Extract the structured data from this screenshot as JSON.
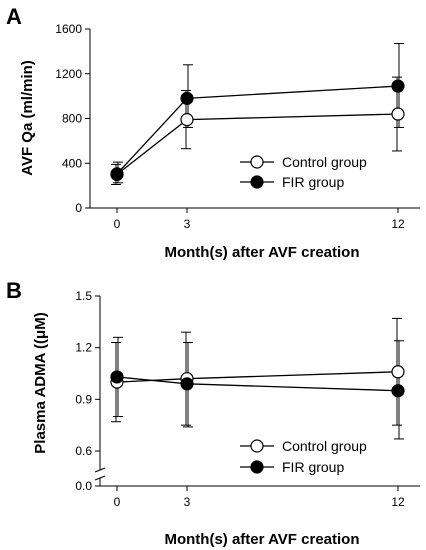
{
  "chart_data": [
    {
      "panel": "A",
      "type": "line",
      "xlabel": "Month(s) after AVF creation",
      "ylabel": "AVF Qa (ml/min)",
      "x": [
        0,
        3,
        12
      ],
      "xticks": [
        "0",
        "3",
        "12"
      ],
      "ylim": [
        0,
        1600
      ],
      "yticks": [
        "0",
        "400",
        "800",
        "1200",
        "1600"
      ],
      "grid": false,
      "legend_position": "bottom-right",
      "series": [
        {
          "name": "Control group",
          "marker": "open-circle",
          "values": [
            300,
            790,
            840
          ],
          "err_low": [
            210,
            530,
            510
          ],
          "err_high": [
            390,
            1050,
            1170
          ]
        },
        {
          "name": "FIR group",
          "marker": "filled-circle",
          "values": [
            305,
            980,
            1090
          ],
          "err_low": [
            225,
            720,
            720
          ],
          "err_high": [
            410,
            1280,
            1470
          ]
        }
      ]
    },
    {
      "panel": "B",
      "type": "line",
      "xlabel": "Month(s) after AVF creation",
      "ylabel": "Plasma ADMA ((μM)",
      "x": [
        0,
        3,
        12
      ],
      "xticks": [
        "0",
        "3",
        "12"
      ],
      "ylim": [
        0,
        1.5
      ],
      "yticks": [
        "0.0",
        "0.6",
        "0.9",
        "1.2",
        "1.5"
      ],
      "axis_break": [
        0,
        0.6
      ],
      "grid": false,
      "legend_position": "bottom-right",
      "series": [
        {
          "name": "Control group",
          "marker": "open-circle",
          "values": [
            1.0,
            1.02,
            1.06
          ],
          "err_low": [
            0.77,
            0.75,
            0.75
          ],
          "err_high": [
            1.23,
            1.29,
            1.37
          ]
        },
        {
          "name": "FIR group",
          "marker": "filled-circle",
          "values": [
            1.03,
            0.99,
            0.95
          ],
          "err_low": [
            0.8,
            0.74,
            0.67
          ],
          "err_high": [
            1.26,
            1.23,
            1.24
          ]
        }
      ]
    }
  ]
}
